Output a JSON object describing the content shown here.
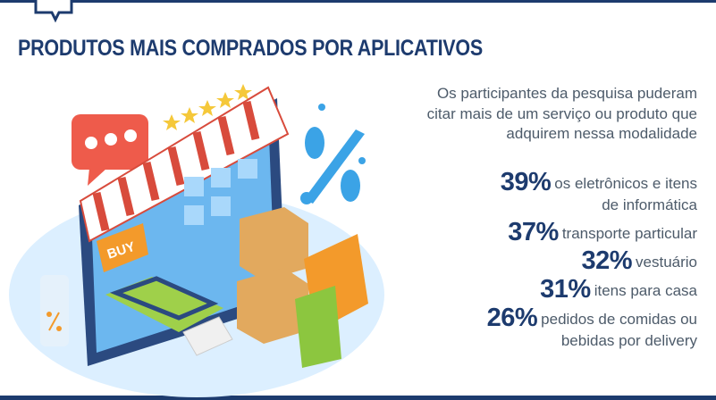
{
  "header": {
    "title": "PRODUTOS MAIS COMPRADOS POR APLICATIVOS"
  },
  "intro": [
    "Os participantes da pesquisa puderam",
    "citar mais de um serviço ou produto que",
    "adquirem nessa modalidade"
  ],
  "items": [
    {
      "percent": "39%",
      "label": [
        "os eletrônicos e itens",
        "de informática"
      ]
    },
    {
      "percent": "37%",
      "label": [
        "transporte particular"
      ]
    },
    {
      "percent": "32%",
      "label": [
        "vestuário"
      ]
    },
    {
      "percent": "31%",
      "label": [
        "itens para casa"
      ]
    },
    {
      "percent": "26%",
      "label": [
        "pedidos de comidas ou",
        "bebidas por delivery"
      ]
    }
  ],
  "illustration": {
    "button": "BUY"
  }
}
